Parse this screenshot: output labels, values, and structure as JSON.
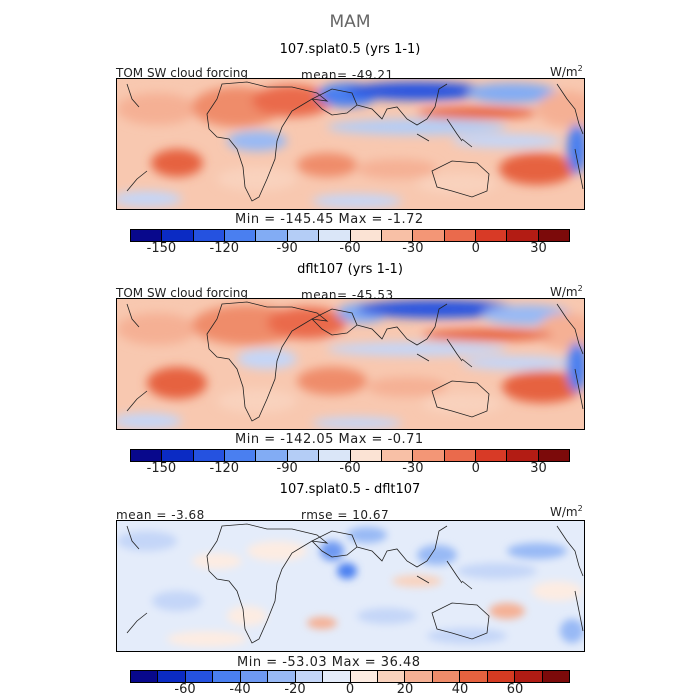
{
  "figure": {
    "season": "MAM"
  },
  "colors": {
    "cb14": [
      "#08088c",
      "#0b2bc4",
      "#2552e0",
      "#4a7ff0",
      "#82acf4",
      "#b4cdf6",
      "#dae6f8",
      "#fbe3d4",
      "#f8c0a6",
      "#f39676",
      "#ea6a4c",
      "#d83a26",
      "#b31c14",
      "#7c0a0a"
    ],
    "cb16": [
      "#08088c",
      "#0b2bc4",
      "#2552e0",
      "#4a7ff0",
      "#6e99f2",
      "#98b9f5",
      "#c4d6f8",
      "#e4ecfa",
      "#fdece2",
      "#f9d2bd",
      "#f5b094",
      "#ef8c6a",
      "#e6623f",
      "#d43b22",
      "#b01c14",
      "#7c0a0a"
    ]
  },
  "panels": [
    {
      "title": "107.splat0.5 (yrs 1-1)",
      "left_label": "TOM SW cloud forcing",
      "center_label": "mean= -49.21",
      "units": "W/m",
      "units_sup": "2",
      "min_max": "Min = -145.45 Max =  -1.72",
      "colorbar_ticks": [
        "-150",
        "-120",
        "-90",
        "-60",
        "-30",
        "0",
        "30"
      ],
      "tick_values": [
        -150,
        -120,
        -90,
        -60,
        -30,
        0,
        30
      ]
    },
    {
      "title": "dflt107 (yrs 1-1)",
      "left_label": "TOM SW cloud forcing",
      "center_label": "mean= -45.53",
      "units": "W/m",
      "units_sup": "2",
      "min_max": "Min = -142.05 Max =  -0.71",
      "colorbar_ticks": [
        "-150",
        "-120",
        "-90",
        "-60",
        "-30",
        "0",
        "30"
      ],
      "tick_values": [
        -150,
        -120,
        -90,
        -60,
        -30,
        0,
        30
      ]
    },
    {
      "title": "107.splat0.5 - dflt107",
      "left_label": "mean =  -3.68",
      "center_label": "rmse =  10.67",
      "units": "W/m",
      "units_sup": "2",
      "min_max": "Min = -53.03 Max =  36.48",
      "colorbar_ticks": [
        "-60",
        "-40",
        "-20",
        "0",
        "20",
        "40",
        "60"
      ],
      "tick_values": [
        -60,
        -40,
        -20,
        0,
        20,
        40,
        60
      ]
    }
  ],
  "chart_data": [
    {
      "type": "heatmap",
      "title": "107.splat0.5 (yrs 1-1)",
      "variable": "TOM SW cloud forcing",
      "units": "W/m2",
      "mean": -49.21,
      "min": -145.45,
      "max": -1.72,
      "colorbar_range": [
        -165,
        45
      ],
      "colorbar_ticks": [
        -150,
        -120,
        -90,
        -60,
        -30,
        0,
        30
      ]
    },
    {
      "type": "heatmap",
      "title": "dflt107 (yrs 1-1)",
      "variable": "TOM SW cloud forcing",
      "units": "W/m2",
      "mean": -45.53,
      "min": -142.05,
      "max": -0.71,
      "colorbar_range": [
        -165,
        45
      ],
      "colorbar_ticks": [
        -150,
        -120,
        -90,
        -60,
        -30,
        0,
        30
      ]
    },
    {
      "type": "heatmap",
      "title": "107.splat0.5 - dflt107",
      "units": "W/m2",
      "mean": -3.68,
      "rmse": 10.67,
      "min": -53.03,
      "max": 36.48,
      "colorbar_range": [
        -80,
        80
      ],
      "colorbar_ticks": [
        -60,
        -40,
        -20,
        0,
        20,
        40,
        60
      ]
    }
  ]
}
